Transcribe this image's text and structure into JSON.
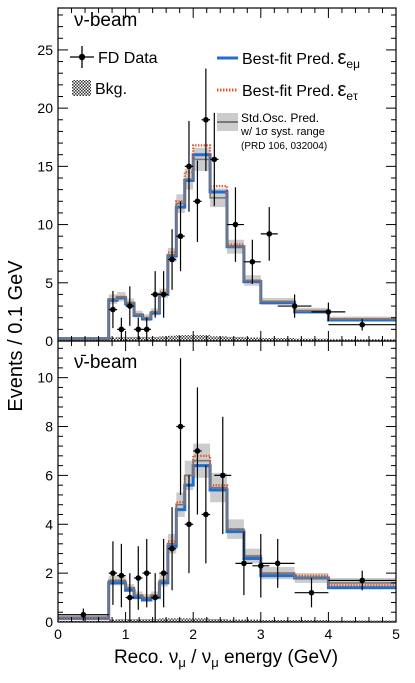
{
  "chart_data": [
    {
      "type": "line",
      "panel_label": "ν-beam",
      "xlim": [
        0,
        5
      ],
      "ylim": [
        0,
        28.6
      ],
      "yticks": [
        0,
        5,
        10,
        15,
        20,
        25
      ],
      "bin_edges": [
        0,
        0.75,
        0.875,
        1.0,
        1.125,
        1.25,
        1.375,
        1.5,
        1.625,
        1.75,
        1.875,
        2.0,
        2.25,
        2.5,
        2.75,
        3.0,
        3.5,
        4.0,
        5.0
      ],
      "series": [
        {
          "name": "Best-fit Pred.",
          "color": "#1f6fd1",
          "style": "solid",
          "values": [
            0.2,
            3.5,
            3.7,
            3.2,
            2.2,
            1.9,
            2.4,
            4.0,
            7.3,
            11.5,
            13.8,
            16.0,
            12.8,
            8.1,
            5.1,
            3.3,
            2.5,
            1.8
          ]
        },
        {
          "name": "Best-fit Pred.",
          "color": "#e8562a",
          "style": "dotted",
          "values": [
            0.2,
            3.6,
            3.8,
            3.3,
            2.3,
            2.0,
            2.5,
            4.2,
            7.6,
            12.0,
            14.5,
            16.8,
            13.3,
            8.3,
            5.2,
            3.4,
            2.6,
            1.9
          ]
        },
        {
          "name": "Std.Osc. Pred.",
          "color": "#777777",
          "style": "solid",
          "values": [
            0.2,
            3.6,
            3.8,
            3.3,
            2.3,
            2.0,
            2.5,
            4.1,
            7.4,
            11.8,
            13.9,
            15.6,
            12.3,
            8.1,
            5.2,
            3.4,
            2.6,
            1.9
          ],
          "band_halfwidth": [
            0.05,
            0.4,
            0.4,
            0.35,
            0.3,
            0.3,
            0.3,
            0.4,
            0.6,
            0.8,
            0.9,
            1.0,
            0.8,
            0.6,
            0.45,
            0.3,
            0.25,
            0.2
          ]
        },
        {
          "name": "Bkg.",
          "type": "area",
          "values": [
            0.1,
            0.3,
            0.35,
            0.35,
            0.35,
            0.35,
            0.35,
            0.4,
            0.45,
            0.5,
            0.5,
            0.5,
            0.4,
            0.35,
            0.3,
            0.25,
            0.2,
            0.15
          ]
        }
      ],
      "data_points": [
        {
          "x": 0.8125,
          "y": 2.7,
          "xerr": 0.0625,
          "yerr": 1.6
        },
        {
          "x": 0.9375,
          "y": 1.0,
          "xerr": 0.0625,
          "yerr": 1.0
        },
        {
          "x": 1.0625,
          "y": 3.0,
          "xerr": 0.0625,
          "yerr": 1.7
        },
        {
          "x": 1.1875,
          "y": 1.0,
          "xerr": 0.0625,
          "yerr": 1.0
        },
        {
          "x": 1.3125,
          "y": 1.0,
          "xerr": 0.0625,
          "yerr": 1.0
        },
        {
          "x": 1.4375,
          "y": 4.0,
          "xerr": 0.0625,
          "yerr": 2.0
        },
        {
          "x": 1.5625,
          "y": 4.0,
          "xerr": 0.0625,
          "yerr": 2.0
        },
        {
          "x": 1.6875,
          "y": 7.0,
          "xerr": 0.0625,
          "yerr": 2.6
        },
        {
          "x": 1.8125,
          "y": 9.0,
          "xerr": 0.0625,
          "yerr": 3.0
        },
        {
          "x": 1.9375,
          "y": 15.0,
          "xerr": 0.0625,
          "yerr": 3.9
        },
        {
          "x": 2.0625,
          "y": 12.0,
          "xerr": 0.0625,
          "yerr": 3.5
        },
        {
          "x": 2.1875,
          "y": 19.0,
          "xerr": 0.0625,
          "yerr": 4.4
        },
        {
          "x": 2.3125,
          "y": 15.6,
          "xerr": 0.0625,
          "yerr": 4.0
        },
        {
          "x": 2.625,
          "y": 10.0,
          "xerr": 0.125,
          "yerr": 3.2
        },
        {
          "x": 2.875,
          "y": 6.8,
          "xerr": 0.125,
          "yerr": 1.9
        },
        {
          "x": 3.125,
          "y": 9.2,
          "xerr": 0.125,
          "yerr": 2.3
        },
        {
          "x": 3.5,
          "y": 3.0,
          "xerr": 0.25,
          "yerr": 1.0
        },
        {
          "x": 4.0,
          "y": 2.5,
          "xerr": 0.25,
          "yerr": 0.8
        },
        {
          "x": 4.5,
          "y": 1.4,
          "xerr": 0.5,
          "yerr": 0.5
        }
      ]
    },
    {
      "type": "line",
      "panel_label": "ν̄-beam",
      "xlim": [
        0,
        5
      ],
      "ylim": [
        0,
        11.5
      ],
      "yticks": [
        0,
        2,
        4,
        6,
        8,
        10
      ],
      "bin_edges": [
        0,
        0.75,
        0.875,
        1.0,
        1.125,
        1.25,
        1.375,
        1.5,
        1.625,
        1.75,
        1.875,
        2.0,
        2.25,
        2.5,
        2.75,
        3.0,
        3.5,
        4.0,
        5.0
      ],
      "series": [
        {
          "name": "Best-fit Pred.",
          "color": "#1f6fd1",
          "style": "solid",
          "values": [
            0.15,
            1.6,
            1.6,
            1.3,
            1.0,
            0.9,
            1.0,
            1.6,
            3.1,
            4.6,
            5.6,
            6.4,
            5.4,
            3.7,
            2.6,
            1.9,
            1.8,
            1.4
          ]
        },
        {
          "name": "Best-fit Pred.",
          "color": "#e8562a",
          "style": "dotted",
          "values": [
            0.15,
            1.7,
            1.7,
            1.4,
            1.1,
            1.0,
            1.1,
            1.7,
            3.3,
            4.9,
            6.0,
            6.8,
            5.6,
            3.8,
            2.7,
            2.0,
            1.9,
            1.5
          ]
        },
        {
          "name": "Std.Osc. Pred.",
          "color": "#777777",
          "style": "solid",
          "values": [
            0.2,
            1.7,
            1.7,
            1.4,
            1.1,
            1.0,
            1.1,
            1.7,
            3.2,
            4.8,
            6.0,
            6.6,
            5.5,
            3.8,
            2.7,
            2.0,
            1.8,
            1.6
          ],
          "band_halfwidth": [
            0.1,
            0.2,
            0.2,
            0.15,
            0.15,
            0.15,
            0.15,
            0.25,
            0.4,
            0.5,
            0.6,
            0.7,
            0.6,
            0.4,
            0.3,
            0.25,
            0.2,
            0.2
          ]
        },
        {
          "name": "Bkg.",
          "type": "area",
          "values": [
            0.05,
            0.1,
            0.12,
            0.12,
            0.12,
            0.12,
            0.12,
            0.15,
            0.15,
            0.15,
            0.15,
            0.15,
            0.12,
            0.1,
            0.1,
            0.08,
            0.08,
            0.06
          ]
        }
      ],
      "data_points": [
        {
          "x": 0.375,
          "y": 0.3,
          "xerr": 0.375,
          "yerr": 0.25
        },
        {
          "x": 0.8125,
          "y": 2.0,
          "xerr": 0.0625,
          "yerr": 1.3
        },
        {
          "x": 0.9375,
          "y": 1.9,
          "xerr": 0.0625,
          "yerr": 1.3
        },
        {
          "x": 1.0625,
          "y": 1.0,
          "xerr": 0.0625,
          "yerr": 1.0
        },
        {
          "x": 1.1875,
          "y": 1.8,
          "xerr": 0.0625,
          "yerr": 1.3
        },
        {
          "x": 1.3125,
          "y": 2.0,
          "xerr": 0.0625,
          "yerr": 1.4
        },
        {
          "x": 1.4375,
          "y": 1.0,
          "xerr": 0.0625,
          "yerr": 1.0
        },
        {
          "x": 1.5625,
          "y": 2.0,
          "xerr": 0.0625,
          "yerr": 1.4
        },
        {
          "x": 1.6875,
          "y": 3.0,
          "xerr": 0.0625,
          "yerr": 1.7
        },
        {
          "x": 1.8125,
          "y": 8.0,
          "xerr": 0.0625,
          "yerr": 2.8
        },
        {
          "x": 1.9375,
          "y": 4.0,
          "xerr": 0.0625,
          "yerr": 2.0
        },
        {
          "x": 2.0625,
          "y": 7.0,
          "xerr": 0.0625,
          "yerr": 2.6
        },
        {
          "x": 2.1875,
          "y": 4.4,
          "xerr": 0.0625,
          "yerr": 2.0
        },
        {
          "x": 2.4375,
          "y": 6.0,
          "xerr": 0.125,
          "yerr": 2.4
        },
        {
          "x": 2.75,
          "y": 2.4,
          "xerr": 0.125,
          "yerr": 1.3
        },
        {
          "x": 3.0,
          "y": 2.3,
          "xerr": 0.125,
          "yerr": 1.3
        },
        {
          "x": 3.25,
          "y": 2.4,
          "xerr": 0.25,
          "yerr": 1.0
        },
        {
          "x": 3.75,
          "y": 1.2,
          "xerr": 0.25,
          "yerr": 0.6
        },
        {
          "x": 4.5,
          "y": 1.7,
          "xerr": 0.5,
          "yerr": 0.4
        }
      ]
    }
  ],
  "axes": {
    "xlabel": "Reco. νμ / ν̄μ energy (GeV)",
    "xlabel_parts": {
      "prefix": "Reco. ν",
      "sub1": "μ",
      "mid": " / ν",
      "sub2": "μ",
      "suffix": " energy (GeV)"
    },
    "ylabel": "Events / 0.1 GeV",
    "xticks": [
      0,
      1,
      2,
      3,
      4,
      5
    ]
  },
  "legend": {
    "placement": "top-right",
    "data": "FD Data",
    "bkg": "Bkg.",
    "fit_emu": {
      "label": "Best-fit Pred.",
      "symbol": "ε",
      "sub": "eμ"
    },
    "fit_etau": {
      "label": "Best-fit Pred.",
      "symbol": "ε",
      "sub": "eτ"
    },
    "stdosc": {
      "line1": "Std.Osc. Pred.",
      "line2": "w/ 1σ syst. range",
      "line3": "(PRD 106, 032004)"
    }
  },
  "colors": {
    "fit_emu": "#1f6fd1",
    "fit_etau": "#e8562a",
    "stdosc_line": "#777777",
    "stdosc_band": "#cccccc"
  }
}
